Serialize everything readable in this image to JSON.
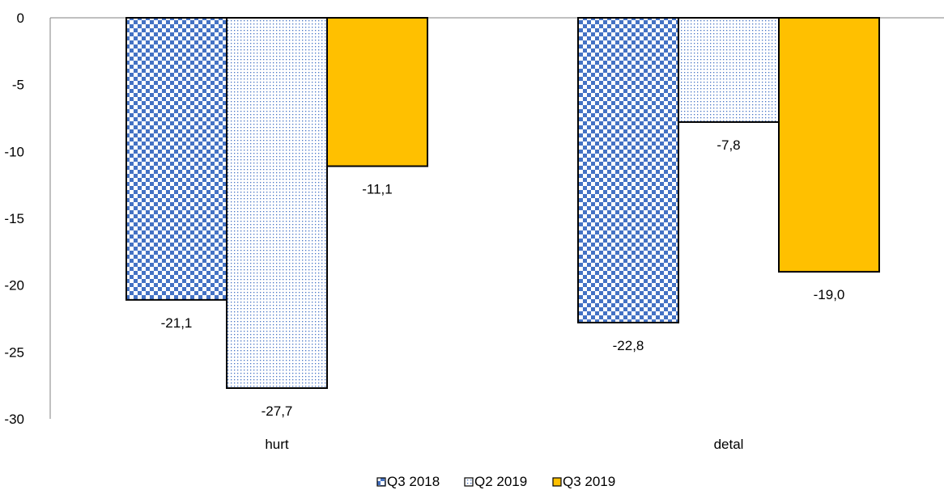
{
  "chart_data": {
    "type": "bar",
    "categories": [
      "hurt",
      "detal"
    ],
    "series": [
      {
        "name": "Q3 2018",
        "values": [
          -21.1,
          -22.8
        ],
        "data_labels": [
          "-21,1",
          "-22,8"
        ],
        "pattern": "checker",
        "color": "#4472c4"
      },
      {
        "name": "Q2 2019",
        "values": [
          -27.7,
          -7.8
        ],
        "data_labels": [
          "-27,7",
          "-7,8"
        ],
        "pattern": "dots",
        "color": "#4472c4"
      },
      {
        "name": "Q3 2019",
        "values": [
          -11.1,
          -19.0
        ],
        "data_labels": [
          "-11,1",
          "-19,0"
        ],
        "pattern": "solid",
        "color": "#ffc000"
      }
    ],
    "y_ticks": [
      "0",
      "-5",
      "-10",
      "-15",
      "-20",
      "-25",
      "-30"
    ],
    "ylim": [
      -30,
      0
    ],
    "grid": false,
    "legend_position": "bottom",
    "title": "",
    "xlabel": "",
    "ylabel": ""
  }
}
